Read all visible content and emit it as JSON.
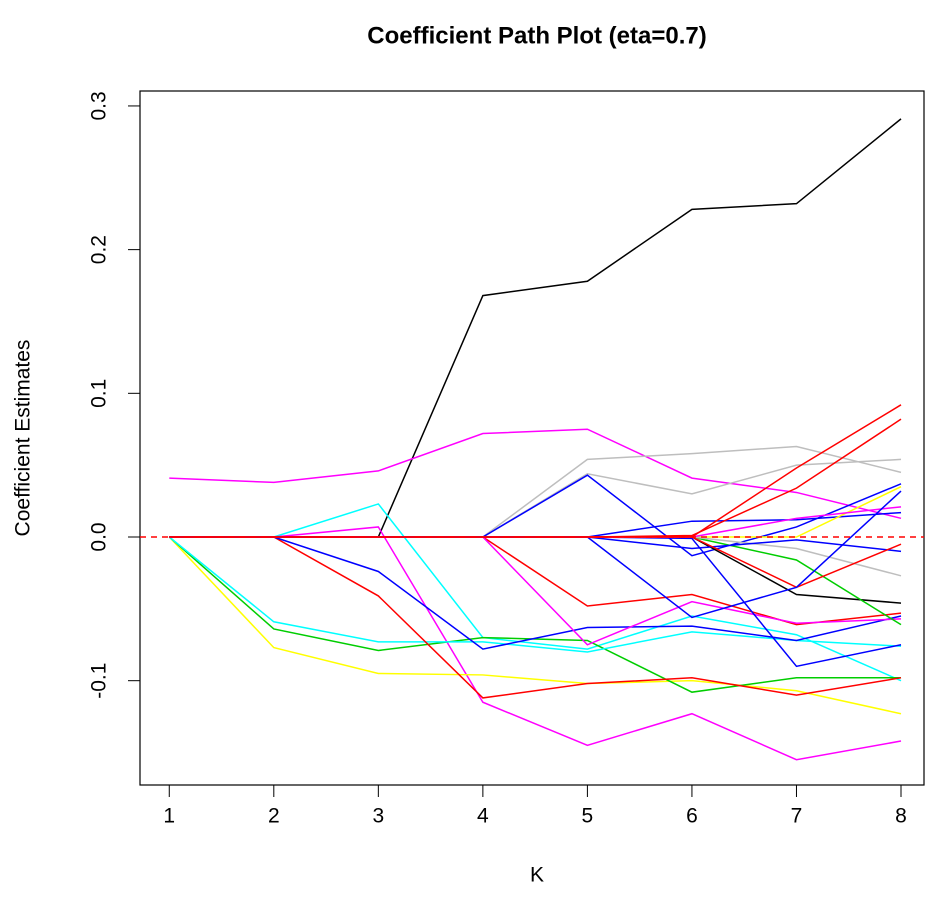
{
  "chart_data": {
    "type": "line",
    "title": "Coefficient Path Plot (eta=0.7)",
    "x_label": "K",
    "y_label": "Coefficient Estimates",
    "x": [
      1,
      2,
      3,
      4,
      5,
      6,
      7,
      8
    ],
    "xlim": [
      0.72,
      8.22
    ],
    "xticks": [
      1,
      2,
      3,
      4,
      5,
      6,
      7,
      8
    ],
    "ylim": [
      -0.1726,
      0.3104
    ],
    "yticks": [
      {
        "value": -0.1,
        "label": "-0.1"
      },
      {
        "value": 0,
        "label": "0.0"
      },
      0.1,
      0.2,
      0.3
    ],
    "reference_line": {
      "value": 0,
      "color": "#ff0000",
      "style": "dashed"
    },
    "series": [
      {
        "color": "#000000",
        "values": [
          0,
          0,
          0,
          0.168,
          0.178,
          0.228,
          0.232,
          0.291
        ]
      },
      {
        "color": "#ff00ff",
        "values": [
          0.041,
          0.038,
          0.046,
          0.072,
          0.075,
          0.041,
          0.031,
          0.013
        ]
      },
      {
        "color": "#00ffff",
        "values": [
          0,
          0,
          0.023,
          -0.07,
          -0.078,
          -0.055,
          -0.068,
          -0.1
        ]
      },
      {
        "color": "#ff00ff",
        "values": [
          0,
          0,
          0.007,
          -0.115,
          -0.145,
          -0.123,
          -0.155,
          -0.142
        ]
      },
      {
        "color": "#ffff00",
        "values": [
          0,
          -0.077,
          -0.095,
          -0.096,
          -0.102,
          -0.1,
          -0.107,
          -0.123
        ]
      },
      {
        "color": "#00cd00",
        "values": [
          0,
          -0.064,
          -0.079,
          -0.07,
          -0.072,
          -0.108,
          -0.098,
          -0.098
        ]
      },
      {
        "color": "#00ffff",
        "values": [
          0,
          -0.059,
          -0.073,
          -0.073,
          -0.08,
          -0.066,
          -0.072,
          -0.076
        ]
      },
      {
        "color": "#ff0000",
        "values": [
          0,
          0,
          -0.041,
          -0.112,
          -0.102,
          -0.098,
          -0.11,
          -0.098
        ]
      },
      {
        "color": "#0000ff",
        "values": [
          0,
          0,
          -0.024,
          -0.078,
          -0.063,
          -0.062,
          -0.072,
          -0.055
        ]
      },
      {
        "color": "#ff0000",
        "values": [
          0,
          0,
          0,
          0,
          -0.048,
          -0.04,
          -0.061,
          -0.053
        ]
      },
      {
        "color": "#bebebe",
        "values": [
          0,
          0,
          0,
          0,
          0.054,
          0.058,
          0.063,
          0.045
        ]
      },
      {
        "color": "#bebebe",
        "values": [
          0,
          0,
          0,
          0,
          0.044,
          0.03,
          0.05,
          0.054
        ]
      },
      {
        "color": "#0000ff",
        "values": [
          0,
          0,
          0,
          0,
          0.043,
          -0.013,
          0.007,
          0.037
        ]
      },
      {
        "color": "#0000ff",
        "values": [
          0,
          0,
          0,
          0,
          0,
          0.011,
          0.012,
          0.017
        ]
      },
      {
        "color": "#ff00ff",
        "values": [
          0,
          0,
          0,
          0,
          -0.075,
          -0.045,
          -0.06,
          -0.057
        ]
      },
      {
        "color": "#000000",
        "values": [
          0,
          0,
          0,
          0,
          0,
          0,
          -0.04,
          -0.046
        ]
      },
      {
        "color": "#00cd00",
        "values": [
          0,
          0,
          0,
          0,
          0,
          0,
          -0.016,
          -0.061
        ]
      },
      {
        "color": "#0000ff",
        "values": [
          0,
          0,
          0,
          0,
          0,
          -0.001,
          -0.09,
          -0.075
        ]
      },
      {
        "color": "#ffff00",
        "values": [
          0,
          0,
          0,
          0,
          0,
          0,
          0,
          0.035
        ]
      },
      {
        "color": "#bebebe",
        "values": [
          0,
          0,
          0,
          0,
          0,
          0,
          -0.008,
          -0.027
        ]
      },
      {
        "color": "#0000ff",
        "values": [
          0,
          0,
          0,
          0,
          0,
          -0.008,
          -0.002,
          -0.01
        ]
      },
      {
        "color": "#ff00ff",
        "values": [
          0,
          0,
          0,
          0,
          0,
          0,
          0.013,
          0.021
        ]
      },
      {
        "color": "#ff0000",
        "values": [
          0,
          0,
          0,
          0,
          0,
          0,
          -0.035,
          -0.005
        ]
      },
      {
        "color": "#0000ff",
        "values": [
          0,
          0,
          0,
          0,
          0,
          -0.056,
          -0.035,
          0.032
        ]
      },
      {
        "color": "#ff0000",
        "values": [
          0,
          0,
          0,
          0,
          0,
          0,
          0.048,
          0.092
        ]
      },
      {
        "color": "#ff0000",
        "values": [
          0,
          0,
          0,
          0,
          0,
          0.001,
          0.034,
          0.082
        ]
      }
    ]
  }
}
